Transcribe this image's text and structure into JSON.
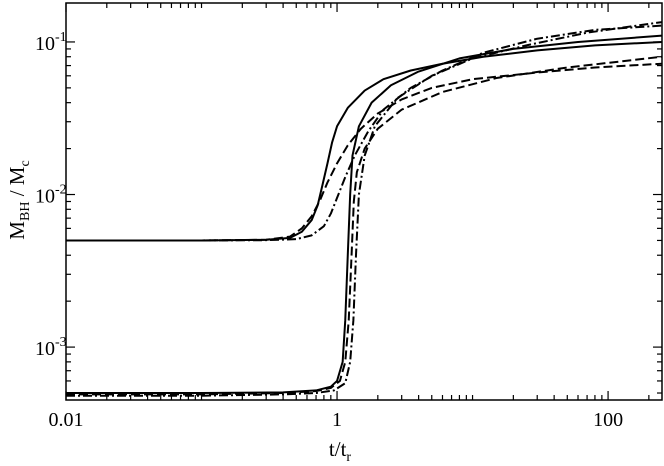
{
  "chart_data": {
    "type": "line",
    "title": "",
    "x_scale": "log",
    "y_scale": "log",
    "xlim": [
      0.01,
      250
    ],
    "ylim": [
      0.00045,
      0.18
    ],
    "grid": false,
    "legend": "none",
    "x_ticks": [
      {
        "value": 0.01,
        "label": "0.01"
      },
      {
        "value": 1,
        "label": "1"
      },
      {
        "value": 100,
        "label": "100"
      }
    ],
    "y_ticks": [
      {
        "value": 0.001,
        "base": "10",
        "exp": "-3"
      },
      {
        "value": 0.01,
        "base": "10",
        "exp": "-2"
      },
      {
        "value": 0.1,
        "base": "10",
        "exp": "-1"
      }
    ],
    "xlabel": {
      "main": "t/t",
      "sub": "r"
    },
    "ylabel": {
      "m": "M",
      "m_sub": "BH",
      "slash": " / M",
      "c_sub": "c"
    },
    "series": [
      {
        "style": "solid",
        "points": [
          [
            0.01,
            0.005
          ],
          [
            0.1,
            0.005
          ],
          [
            0.3,
            0.00505
          ],
          [
            0.45,
            0.0052
          ],
          [
            0.55,
            0.0057
          ],
          [
            0.65,
            0.0068
          ],
          [
            0.72,
            0.0085
          ],
          [
            0.78,
            0.0115
          ],
          [
            0.85,
            0.016
          ],
          [
            0.92,
            0.022
          ],
          [
            1.0,
            0.028
          ],
          [
            1.2,
            0.037
          ],
          [
            1.6,
            0.048
          ],
          [
            2.2,
            0.057
          ],
          [
            3.5,
            0.065
          ],
          [
            6,
            0.072
          ],
          [
            12,
            0.08
          ],
          [
            30,
            0.088
          ],
          [
            80,
            0.095
          ],
          [
            250,
            0.1
          ]
        ]
      },
      {
        "style": "dashed",
        "points": [
          [
            0.01,
            0.005
          ],
          [
            0.1,
            0.005
          ],
          [
            0.3,
            0.00505
          ],
          [
            0.45,
            0.0053
          ],
          [
            0.55,
            0.006
          ],
          [
            0.65,
            0.0072
          ],
          [
            0.75,
            0.0092
          ],
          [
            0.85,
            0.012
          ],
          [
            1.0,
            0.016
          ],
          [
            1.2,
            0.021
          ],
          [
            1.5,
            0.027
          ],
          [
            2,
            0.034
          ],
          [
            3,
            0.042
          ],
          [
            5,
            0.05
          ],
          [
            10,
            0.057
          ],
          [
            30,
            0.063
          ],
          [
            80,
            0.068
          ],
          [
            250,
            0.072
          ]
        ]
      },
      {
        "style": "dashdot",
        "points": [
          [
            0.01,
            0.005
          ],
          [
            0.1,
            0.005
          ],
          [
            0.3,
            0.00502
          ],
          [
            0.5,
            0.0051
          ],
          [
            0.65,
            0.0054
          ],
          [
            0.8,
            0.0062
          ],
          [
            0.9,
            0.0075
          ],
          [
            1.0,
            0.0095
          ],
          [
            1.15,
            0.013
          ],
          [
            1.35,
            0.018
          ],
          [
            1.7,
            0.026
          ],
          [
            2.2,
            0.036
          ],
          [
            3.5,
            0.05
          ],
          [
            6,
            0.065
          ],
          [
            12,
            0.085
          ],
          [
            30,
            0.105
          ],
          [
            80,
            0.12
          ],
          [
            250,
            0.128
          ]
        ]
      },
      {
        "style": "solid",
        "points": [
          [
            0.01,
            0.0005
          ],
          [
            0.1,
            0.0005
          ],
          [
            0.4,
            0.000505
          ],
          [
            0.7,
            0.00052
          ],
          [
            0.9,
            0.00055
          ],
          [
            1.0,
            0.0006
          ],
          [
            1.1,
            0.0008
          ],
          [
            1.15,
            0.0015
          ],
          [
            1.2,
            0.004
          ],
          [
            1.25,
            0.01
          ],
          [
            1.3,
            0.018
          ],
          [
            1.45,
            0.028
          ],
          [
            1.8,
            0.04
          ],
          [
            2.5,
            0.052
          ],
          [
            4,
            0.064
          ],
          [
            8,
            0.078
          ],
          [
            20,
            0.09
          ],
          [
            60,
            0.1
          ],
          [
            250,
            0.11
          ]
        ]
      },
      {
        "style": "dashed",
        "points": [
          [
            0.01,
            0.00049
          ],
          [
            0.1,
            0.00049
          ],
          [
            0.4,
            0.0005
          ],
          [
            0.7,
            0.000515
          ],
          [
            0.9,
            0.00054
          ],
          [
            1.05,
            0.0006
          ],
          [
            1.15,
            0.0008
          ],
          [
            1.22,
            0.0015
          ],
          [
            1.28,
            0.004
          ],
          [
            1.33,
            0.009
          ],
          [
            1.4,
            0.014
          ],
          [
            1.6,
            0.02
          ],
          [
            2,
            0.027
          ],
          [
            3,
            0.036
          ],
          [
            6,
            0.047
          ],
          [
            15,
            0.058
          ],
          [
            50,
            0.068
          ],
          [
            250,
            0.08
          ]
        ]
      },
      {
        "style": "dashdot",
        "points": [
          [
            0.01,
            0.00048
          ],
          [
            0.1,
            0.00048
          ],
          [
            0.4,
            0.00049
          ],
          [
            0.7,
            0.0005
          ],
          [
            0.95,
            0.00052
          ],
          [
            1.15,
            0.00058
          ],
          [
            1.25,
            0.0008
          ],
          [
            1.32,
            0.0015
          ],
          [
            1.38,
            0.004
          ],
          [
            1.45,
            0.01
          ],
          [
            1.6,
            0.018
          ],
          [
            1.9,
            0.028
          ],
          [
            2.8,
            0.043
          ],
          [
            5,
            0.06
          ],
          [
            10,
            0.078
          ],
          [
            25,
            0.095
          ],
          [
            70,
            0.115
          ],
          [
            250,
            0.135
          ]
        ]
      }
    ]
  }
}
